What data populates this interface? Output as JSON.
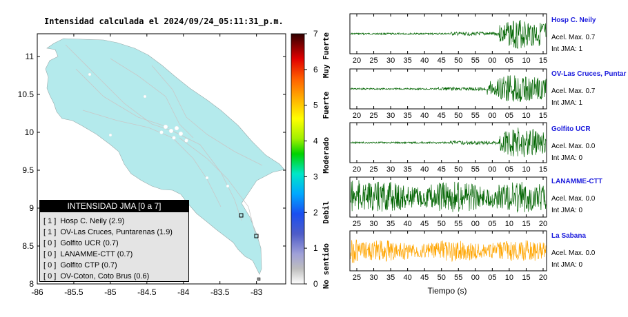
{
  "map_title": "Intensidad calculada el 2024/09/24_05:11:31_p.m.",
  "legend": {
    "title": "INTENSIDAD JMA [0 a 7]",
    "entries": [
      {
        "jma": "[ 1 ]",
        "label": "Hosp C. Neily (2.9)"
      },
      {
        "jma": "[ 1 ]",
        "label": "OV-Las Cruces, Puntarenas (1.9)"
      },
      {
        "jma": "[ 0 ]",
        "label": "Golfito UCR (0.7)"
      },
      {
        "jma": "[ 0 ]",
        "label": "LANAMME-CTT (0.7)"
      },
      {
        "jma": "[ 0 ]",
        "label": "Golfito CTP (0.7)"
      },
      {
        "jma": "[ 0 ]",
        "label": "OV-Coton, Coto Brus (0.6)"
      }
    ]
  },
  "colorbar": {
    "ticks": [
      "0",
      "1",
      "2",
      "3",
      "4",
      "5",
      "6",
      "7"
    ],
    "labels": [
      "No sentido",
      "Debil",
      "Moderado",
      "Fuerte",
      "Muy Fuerte"
    ]
  },
  "seismo_xlabel": "Tiempo (s)",
  "stations": [
    {
      "name": "Hosp C. Neily",
      "acel": "Acel. Max. 0.7",
      "int": "Int JMA: 1",
      "color": "#006400"
    },
    {
      "name": "OV-Las Cruces, Puntar",
      "acel": "Acel. Max. 0.7",
      "int": "Int JMA: 1",
      "color": "#006400"
    },
    {
      "name": "Golfito UCR",
      "acel": "Acel. Max. 0.0",
      "int": "Int JMA: 0",
      "color": "#006400"
    },
    {
      "name": "LANAMME-CTT",
      "acel": "Acel. Max. 0.0",
      "int": "Int JMA: 0",
      "color": "#006400"
    },
    {
      "name": "La Sabana",
      "acel": "Acel. Max. 0.0",
      "int": "Int JMA: 0",
      "color": "#ffa500"
    }
  ],
  "chart_data": [
    {
      "type": "heatmap",
      "title": "Intensidad calculada el 2024/09/24_05:11:31_p.m.",
      "x_ticks": [
        "-86",
        "-85.5",
        "-85",
        "-84.5",
        "-84",
        "-83.5",
        "-83"
      ],
      "y_ticks": [
        "8",
        "8.5",
        "9",
        "9.5",
        "10",
        "10.5",
        "11"
      ],
      "xlim": [
        -86,
        -82.6
      ],
      "ylim": [
        8,
        11.3
      ],
      "colorbar_range": [
        0,
        7
      ],
      "marked_stations": [
        {
          "lon": -82.93,
          "lat": 8.65
        },
        {
          "lon": -83.14,
          "lat": 8.88
        },
        {
          "lon": -82.92,
          "lat": 8.06
        }
      ]
    },
    {
      "type": "line",
      "series": [
        {
          "name": "Hosp C. Neily"
        }
      ],
      "x_ticks": [
        "20",
        "25",
        "30",
        "35",
        "40",
        "45",
        "50",
        "55",
        "00",
        "05",
        "10",
        "15"
      ],
      "signal_onset": "03",
      "peak_amplitude_relative": 1.0
    },
    {
      "type": "line",
      "series": [
        {
          "name": "OV-Las Cruces, Puntar"
        }
      ],
      "x_ticks": [
        "20",
        "25",
        "30",
        "35",
        "40",
        "45",
        "50",
        "55",
        "00",
        "05",
        "10",
        "15"
      ],
      "signal_onset": "00",
      "peak_amplitude_relative": 0.9
    },
    {
      "type": "line",
      "series": [
        {
          "name": "Golfito UCR"
        }
      ],
      "x_ticks": [
        "20",
        "25",
        "30",
        "35",
        "40",
        "45",
        "50",
        "55",
        "00",
        "05",
        "10",
        "15"
      ],
      "signal_onset": "03",
      "peak_amplitude_relative": 1.0
    },
    {
      "type": "line",
      "series": [
        {
          "name": "LANAMME-CTT"
        }
      ],
      "x_ticks": [
        "25",
        "30",
        "35",
        "40",
        "45",
        "50",
        "55",
        "00",
        "05",
        "10",
        "15",
        "20"
      ],
      "signal_onset": "20",
      "peak_amplitude_relative": 1.0
    },
    {
      "type": "line",
      "series": [
        {
          "name": "La Sabana"
        }
      ],
      "x_ticks": [
        "25",
        "30",
        "35",
        "40",
        "45",
        "50",
        "55",
        "00",
        "05",
        "10",
        "15",
        "20"
      ],
      "signal_onset": "20",
      "peak_amplitude_relative": 0.7,
      "xlabel": "Tiempo (s)"
    }
  ]
}
